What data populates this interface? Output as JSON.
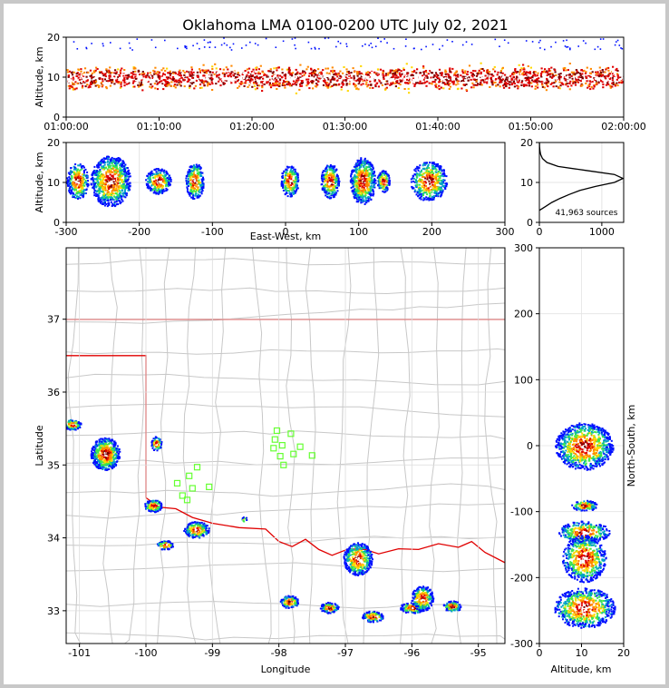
{
  "title": "Oklahoma LMA 0100-0200 UTC July 02, 2021",
  "chart_data": [
    {
      "name": "time-height",
      "type": "heatmap",
      "xlabel": "",
      "ylabel": "Altitude, km",
      "x_ticks": [
        "01:00:00",
        "01:10:00",
        "01:20:00",
        "01:30:00",
        "01:40:00",
        "01:50:00",
        "02:00:00"
      ],
      "y_ticks": [
        "0",
        "10",
        "20"
      ],
      "ylim": [
        0,
        20
      ],
      "core_altitude_km": 10
    },
    {
      "name": "ew-altitude",
      "type": "heatmap",
      "xlabel": "East-West, km",
      "ylabel": "Altitude, km",
      "x_ticks": [
        "-300",
        "-200",
        "-100",
        "0",
        "100",
        "200",
        "300"
      ],
      "y_ticks": [
        "0",
        "10",
        "20"
      ],
      "xlim": [
        -300,
        300
      ],
      "ylim": [
        0,
        20
      ],
      "cells_ew_km": [
        -285,
        -240,
        -175,
        -125,
        5,
        60,
        105,
        133,
        195
      ]
    },
    {
      "name": "altitude-histogram",
      "type": "line",
      "xlabel": "",
      "ylabel": "",
      "x_ticks": [
        "0",
        "1000"
      ],
      "y_ticks": [
        "0",
        "10",
        "20"
      ],
      "xlim": [
        0,
        1350
      ],
      "ylim": [
        0,
        20
      ],
      "annotation": "41,963 sources",
      "profile": [
        [
          0,
          3
        ],
        [
          100,
          4
        ],
        [
          200,
          5
        ],
        [
          330,
          6
        ],
        [
          480,
          7
        ],
        [
          650,
          8
        ],
        [
          900,
          9
        ],
        [
          1200,
          10
        ],
        [
          1340,
          11
        ],
        [
          1200,
          12
        ],
        [
          750,
          13
        ],
        [
          300,
          14
        ],
        [
          120,
          15
        ],
        [
          50,
          16
        ],
        [
          20,
          17
        ],
        [
          8,
          18
        ],
        [
          3,
          19
        ],
        [
          1,
          20
        ]
      ]
    },
    {
      "name": "plan-view",
      "type": "scatter",
      "xlabel": "Longitude",
      "ylabel": "Latitude",
      "x_ticks": [
        "-101",
        "-100",
        "-99",
        "-98",
        "-97",
        "-96",
        "-95"
      ],
      "y_ticks": [
        "33",
        "34",
        "35",
        "36",
        "37"
      ],
      "xlim": [
        -101.2,
        -94.6
      ],
      "ylim": [
        32.55,
        37.98
      ],
      "stations": [
        [
          -98.03,
          35.47
        ],
        [
          -98.06,
          35.35
        ],
        [
          -97.82,
          35.43
        ],
        [
          -97.95,
          35.27
        ],
        [
          -98.08,
          35.23
        ],
        [
          -97.68,
          35.25
        ],
        [
          -97.78,
          35.15
        ],
        [
          -97.5,
          35.13
        ],
        [
          -97.98,
          35.12
        ],
        [
          -97.93,
          35.0
        ],
        [
          -99.23,
          34.97
        ],
        [
          -99.35,
          34.85
        ],
        [
          -99.53,
          34.75
        ],
        [
          -99.3,
          34.68
        ],
        [
          -99.05,
          34.7
        ],
        [
          -99.45,
          34.58
        ],
        [
          -99.38,
          34.52
        ]
      ],
      "cells": [
        [
          -101.12,
          35.56
        ],
        [
          -100.62,
          35.16
        ],
        [
          -99.85,
          35.3
        ],
        [
          -99.9,
          34.45
        ],
        [
          -99.25,
          34.12
        ],
        [
          -99.72,
          33.91
        ],
        [
          -98.53,
          34.26
        ],
        [
          -97.85,
          33.13
        ],
        [
          -97.25,
          33.05
        ],
        [
          -96.82,
          33.72
        ],
        [
          -96.6,
          32.93
        ],
        [
          -96.0,
          33.05
        ],
        [
          -95.85,
          33.18
        ],
        [
          -95.4,
          33.07
        ]
      ]
    },
    {
      "name": "ns-altitude",
      "type": "heatmap",
      "xlabel": "Altitude, km",
      "ylabel": "North-South, km",
      "x_ticks": [
        "0",
        "10",
        "20"
      ],
      "y_ticks": [
        "-300",
        "-200",
        "-100",
        "0",
        "100",
        "200",
        "300"
      ],
      "xlim": [
        0,
        20
      ],
      "ylim": [
        -300,
        300
      ],
      "cells_ns_km": [
        0,
        -90,
        -130,
        -170,
        -245
      ]
    }
  ]
}
